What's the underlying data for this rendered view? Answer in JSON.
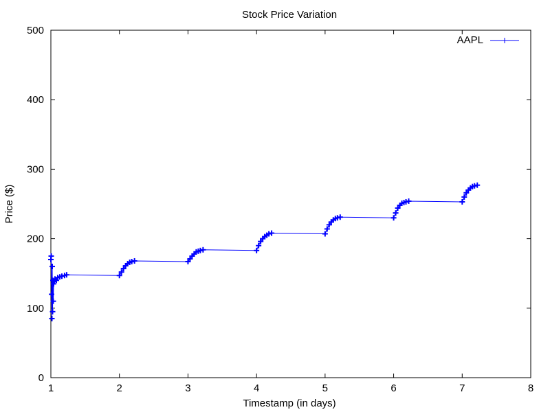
{
  "chart_data": {
    "type": "line",
    "title": "Stock Price Variation",
    "xlabel": "Timestamp (in days)",
    "ylabel": "Price ($)",
    "xlim": [
      1,
      8
    ],
    "ylim": [
      0,
      500
    ],
    "x_ticks": [
      "1",
      "2",
      "3",
      "4",
      "5",
      "6",
      "7",
      "8"
    ],
    "y_ticks": [
      "0",
      "100",
      "200",
      "300",
      "400",
      "500"
    ],
    "grid": false,
    "legend": "top-right",
    "series": [
      {
        "name": "AAPL",
        "color": "#0000ff",
        "marker": "plus",
        "x": [
          1.0,
          1.005,
          1.01,
          1.015,
          1.02,
          1.025,
          1.03,
          1.035,
          1.04,
          1.05,
          1.06,
          1.08,
          1.1,
          1.13,
          1.16,
          1.2,
          1.23,
          2.0,
          2.03,
          2.06,
          2.09,
          2.12,
          2.15,
          2.18,
          2.22,
          3.0,
          3.03,
          3.06,
          3.09,
          3.12,
          3.15,
          3.18,
          3.22,
          4.0,
          4.03,
          4.06,
          4.09,
          4.12,
          4.15,
          4.18,
          4.22,
          5.0,
          5.03,
          5.06,
          5.09,
          5.12,
          5.15,
          5.18,
          5.22,
          6.0,
          6.03,
          6.06,
          6.09,
          6.12,
          6.15,
          6.18,
          6.22,
          7.0,
          7.03,
          7.06,
          7.09,
          7.12,
          7.15,
          7.18,
          7.22
        ],
        "values": [
          170,
          175,
          120,
          85,
          160,
          95,
          140,
          110,
          135,
          138,
          142,
          140,
          144,
          145,
          146,
          147,
          148,
          147,
          152,
          157,
          161,
          164,
          166,
          167,
          168,
          167,
          171,
          175,
          178,
          181,
          182,
          183,
          184,
          183,
          190,
          196,
          200,
          203,
          205,
          207,
          208,
          207,
          214,
          220,
          224,
          227,
          229,
          230,
          231,
          230,
          237,
          244,
          248,
          251,
          252,
          253,
          254,
          253,
          260,
          266,
          270,
          273,
          275,
          276,
          277
        ]
      }
    ]
  }
}
